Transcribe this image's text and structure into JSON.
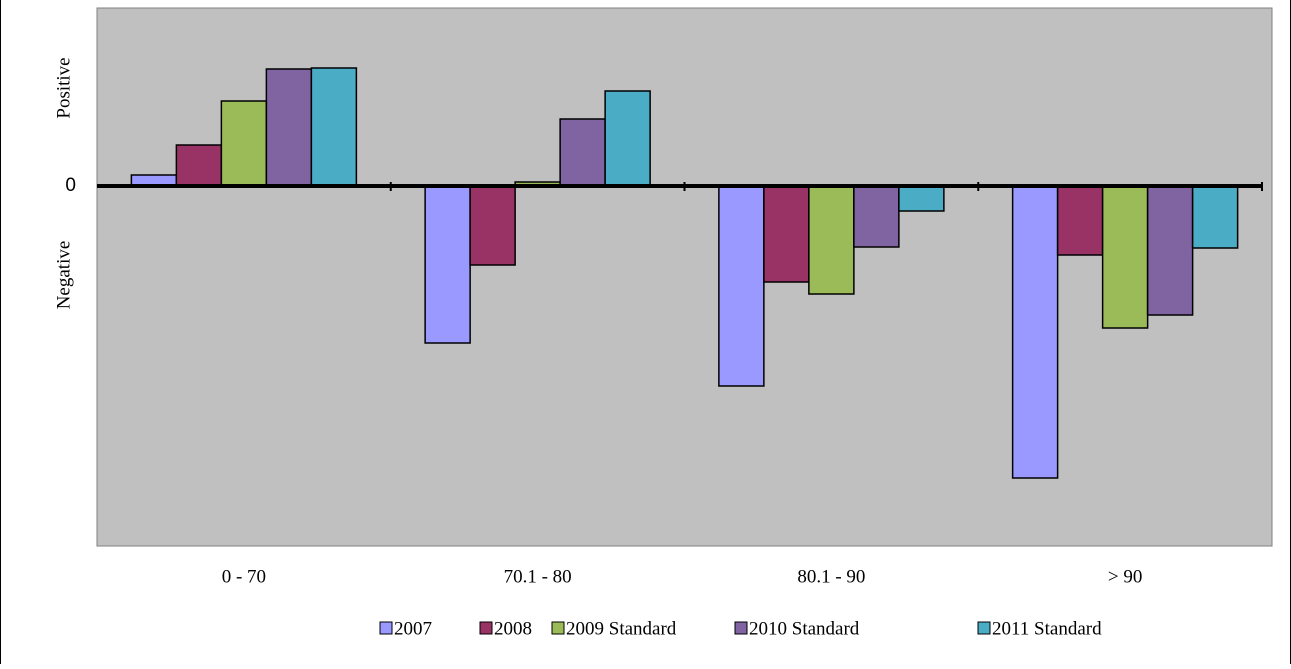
{
  "chart_data": {
    "type": "bar",
    "categories": [
      "0 - 70",
      "70.1 - 80",
      "80.1 - 90",
      "> 90"
    ],
    "series": [
      {
        "name": "2007",
        "color": "#9999ff",
        "values": [
          1.1,
          -15.7,
          -20,
          -29.2
        ]
      },
      {
        "name": "2008",
        "color": "#993366",
        "values": [
          4.1,
          -7.9,
          -9.6,
          -6.9
        ]
      },
      {
        "name": "2009 Standard",
        "color": "#9bbb59",
        "values": [
          8.5,
          0.4,
          -10.8,
          -14.2
        ]
      },
      {
        "name": "2010 Standard",
        "color": "#8064a2",
        "values": [
          11.7,
          6.7,
          -6.1,
          -12.9
        ]
      },
      {
        "name": "2011 Standard",
        "color": "#4bacc6",
        "values": [
          11.8,
          9.5,
          -2.5,
          -6.2
        ]
      }
    ],
    "ylim": [
      -36,
      17.8
    ],
    "yticks": [
      0
    ],
    "y_annotations": [
      "Positive",
      "Negative"
    ],
    "plot_background": "#c0c0c0",
    "legend": "bottom"
  }
}
